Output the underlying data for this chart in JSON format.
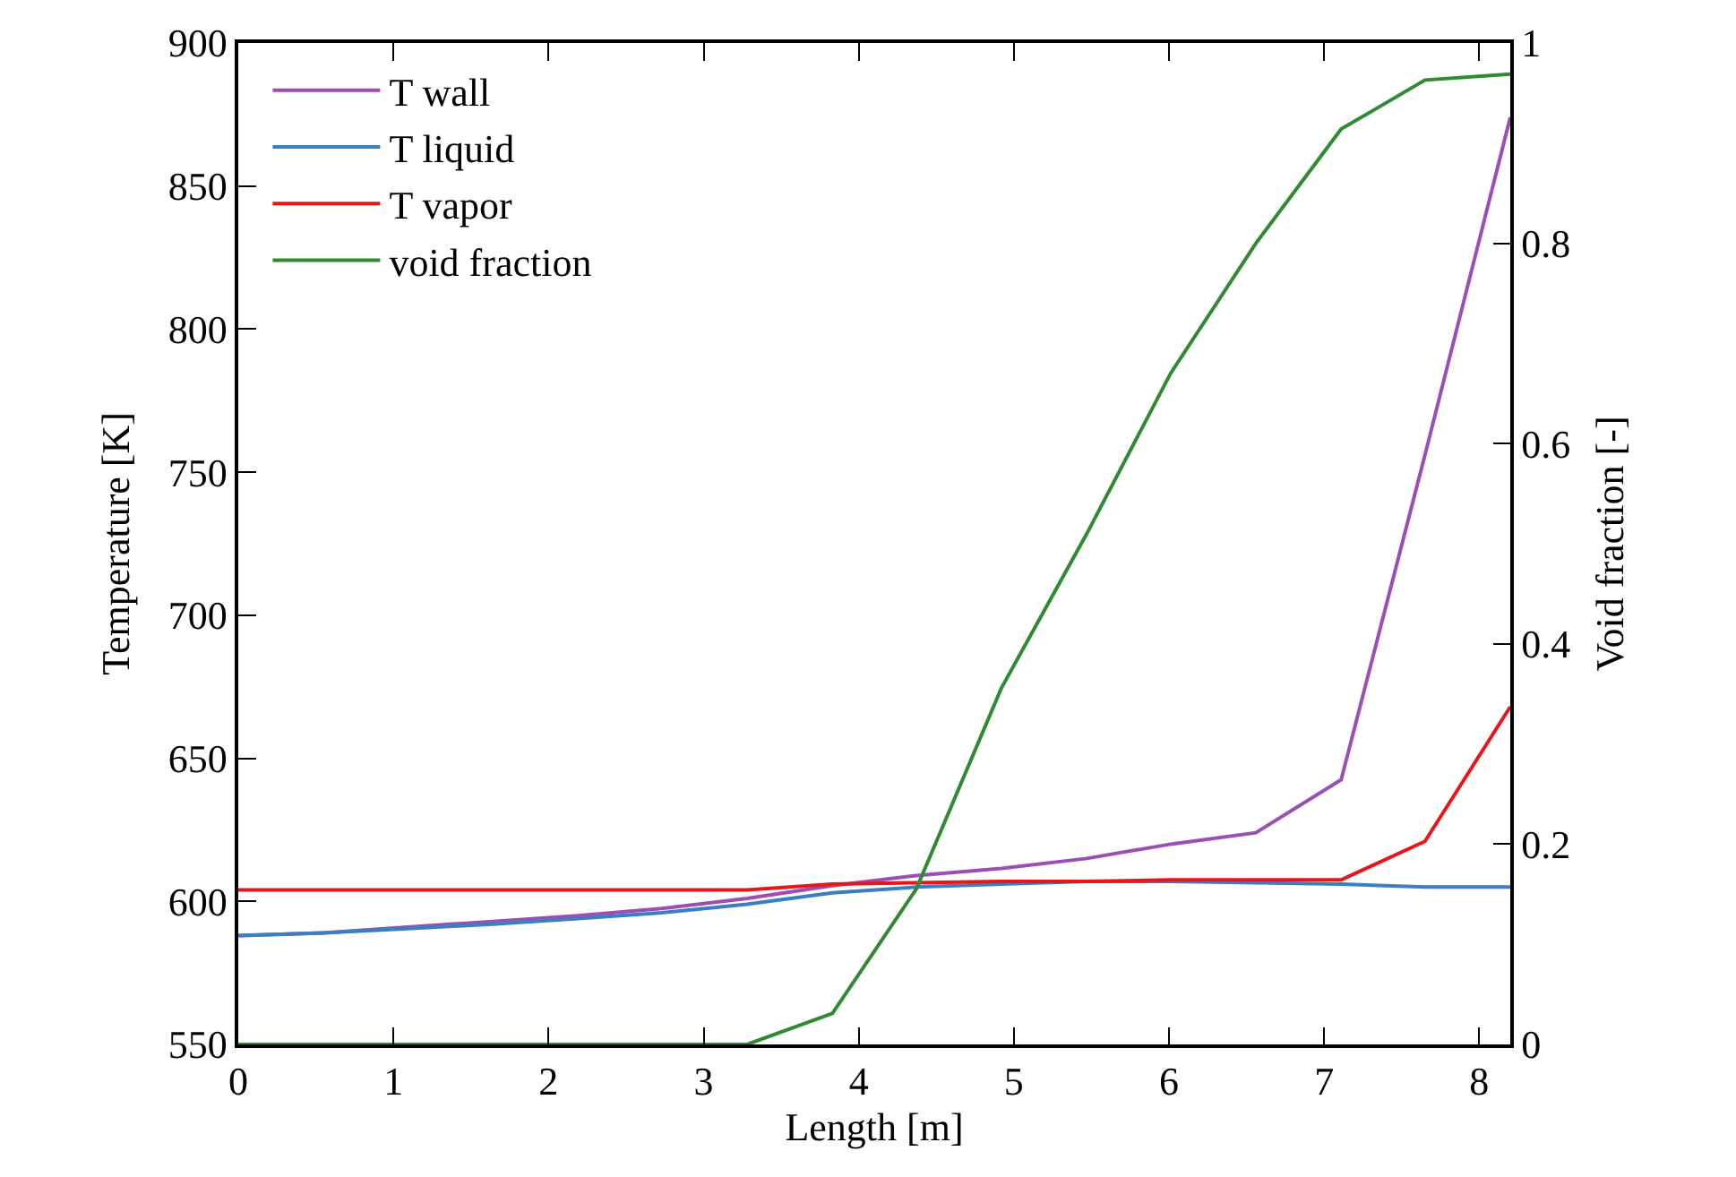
{
  "chart_data": {
    "type": "line",
    "xlabel": "Length [m]",
    "ylabel": "Temperature [K]",
    "y2label": "Void fraction [-]",
    "x": [
      0,
      0.55,
      1.09,
      1.64,
      2.19,
      2.73,
      3.28,
      3.83,
      4.37,
      4.92,
      5.47,
      6.01,
      6.56,
      7.11,
      7.65,
      8.2
    ],
    "xlim": [
      0,
      8.2
    ],
    "xticks": [
      0,
      1,
      2,
      3,
      4,
      5,
      6,
      7,
      8
    ],
    "ylim": [
      550,
      900
    ],
    "yticks": [
      550,
      600,
      650,
      700,
      750,
      800,
      850,
      900
    ],
    "y2lim": [
      0,
      1
    ],
    "y2ticks": [
      0,
      0.2,
      0.4,
      0.6,
      0.8,
      1
    ],
    "legend": "top left",
    "line_style": "solid",
    "series": [
      {
        "name": "T wall",
        "color": "#9b4fb5",
        "values": [
          588,
          589,
          591,
          593,
          595,
          597.5,
          601,
          605.5,
          609,
          611.5,
          615,
          620,
          624,
          642.5,
          756,
          874
        ]
      },
      {
        "name": "T liquid",
        "color": "#3a7fc4",
        "values": [
          588,
          589,
          590.5,
          592,
          594,
          596,
          599,
          603,
          605,
          606,
          607,
          607,
          606.5,
          606,
          605,
          605
        ]
      },
      {
        "name": "T vapor",
        "color": "#e8151b",
        "values": [
          604,
          604,
          604,
          604,
          604,
          604,
          604,
          606,
          606.5,
          607,
          607,
          607.5,
          607.5,
          607.5,
          621,
          668
        ]
      },
      {
        "name": "void fraction",
        "color": "#2f8a32",
        "axis": "y2",
        "values": [
          0,
          0,
          0,
          0,
          0,
          0,
          0,
          0.031,
          0.155,
          0.356,
          0.51,
          0.67,
          0.8,
          0.914,
          0.963,
          0.969
        ]
      }
    ]
  }
}
